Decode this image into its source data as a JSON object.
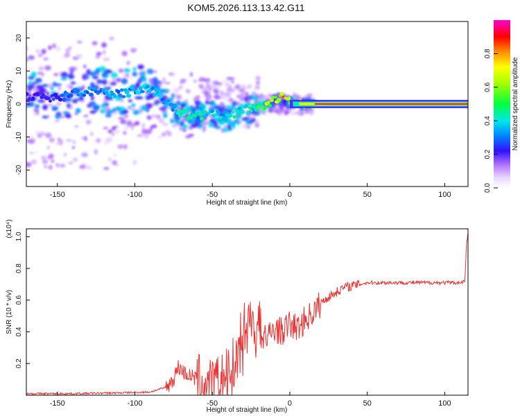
{
  "title": "KOM5.2026.113.13.42.G11",
  "chart_data": [
    {
      "type": "heatmap",
      "subtitle": "spectrogram",
      "xlabel": "Height of straight line (km)",
      "ylabel": "Frequency (Hz)",
      "xlim": [
        -170,
        115
      ],
      "ylim": [
        -25,
        25
      ],
      "x_ticks": [
        -150,
        -100,
        -50,
        0,
        50,
        100
      ],
      "x_tick_labels": [
        "-150",
        "-100",
        "-50",
        "0",
        "50",
        "100"
      ],
      "y_ticks": [
        -20,
        -10,
        0,
        10,
        20
      ],
      "y_tick_labels": [
        "-20",
        "-10",
        "0",
        "10",
        "20"
      ],
      "colorbar": {
        "label": "Normalized spectral amplitude",
        "range": [
          0,
          1
        ],
        "ticks": [
          0.0,
          0.2,
          0.4,
          0.6,
          0.8
        ],
        "tick_labels": [
          "0.0",
          "0.2",
          "0.4",
          "0.6",
          "0.8"
        ],
        "colors": [
          "#ffffff",
          "#d8b8ff",
          "#8a2be2",
          "#2040ff",
          "#00e0ff",
          "#00ff40",
          "#ffff00",
          "#ff0000",
          "#ff00c0"
        ]
      },
      "ridge": {
        "x": [
          -170,
          -150,
          -130,
          -110,
          -90,
          -80,
          -70,
          -60,
          -50,
          -40,
          -30,
          -20,
          -10,
          -5,
          0,
          10,
          20,
          50,
          80,
          115
        ],
        "freq": [
          2,
          2,
          4,
          3,
          5,
          0,
          -3,
          -3.5,
          -3,
          -4,
          -2,
          -1,
          1,
          2,
          0.5,
          0,
          0,
          0,
          0,
          0
        ],
        "amplitude": [
          0.25,
          0.3,
          0.35,
          0.35,
          0.4,
          0.35,
          0.45,
          0.45,
          0.4,
          0.45,
          0.45,
          0.55,
          0.7,
          0.85,
          0.75,
          0.8,
          0.85,
          0.9,
          0.9,
          0.9
        ]
      }
    },
    {
      "type": "line",
      "xlabel": "Height of straight line (km)",
      "ylabel": "SNR (10 * v/v)",
      "y_multiplier": "(x10⁴)",
      "xlim": [
        -170,
        115
      ],
      "ylim": [
        0.0,
        1.05
      ],
      "x_ticks": [
        -150,
        -100,
        -50,
        0,
        50,
        100
      ],
      "x_tick_labels": [
        "-150",
        "-100",
        "-50",
        "0",
        "50",
        "100"
      ],
      "y_ticks": [
        0.2,
        0.4,
        0.6,
        0.8,
        1.0
      ],
      "y_tick_labels": [
        "0.2",
        "0.4",
        "0.6",
        "0.8",
        "1.0"
      ],
      "series": [
        {
          "name": "SNR",
          "color": "#ee3030",
          "x": [
            -170,
            -140,
            -110,
            -90,
            -80,
            -75,
            -72,
            -68,
            -60,
            -55,
            -50,
            -45,
            -40,
            -35,
            -30,
            -28,
            -25,
            -22,
            -20,
            -15,
            -10,
            -5,
            0,
            5,
            10,
            15,
            20,
            25,
            30,
            35,
            40,
            45,
            50,
            60,
            70,
            80,
            90,
            100,
            110,
            113,
            114,
            115
          ],
          "values": [
            0.01,
            0.01,
            0.015,
            0.02,
            0.05,
            0.1,
            0.18,
            0.14,
            0.1,
            0.07,
            0.05,
            0.09,
            0.12,
            0.22,
            0.3,
            0.42,
            0.55,
            0.3,
            0.4,
            0.35,
            0.42,
            0.4,
            0.45,
            0.42,
            0.48,
            0.52,
            0.58,
            0.62,
            0.65,
            0.68,
            0.69,
            0.7,
            0.71,
            0.71,
            0.71,
            0.71,
            0.71,
            0.71,
            0.71,
            0.72,
            0.95,
            1.02
          ]
        }
      ]
    }
  ]
}
